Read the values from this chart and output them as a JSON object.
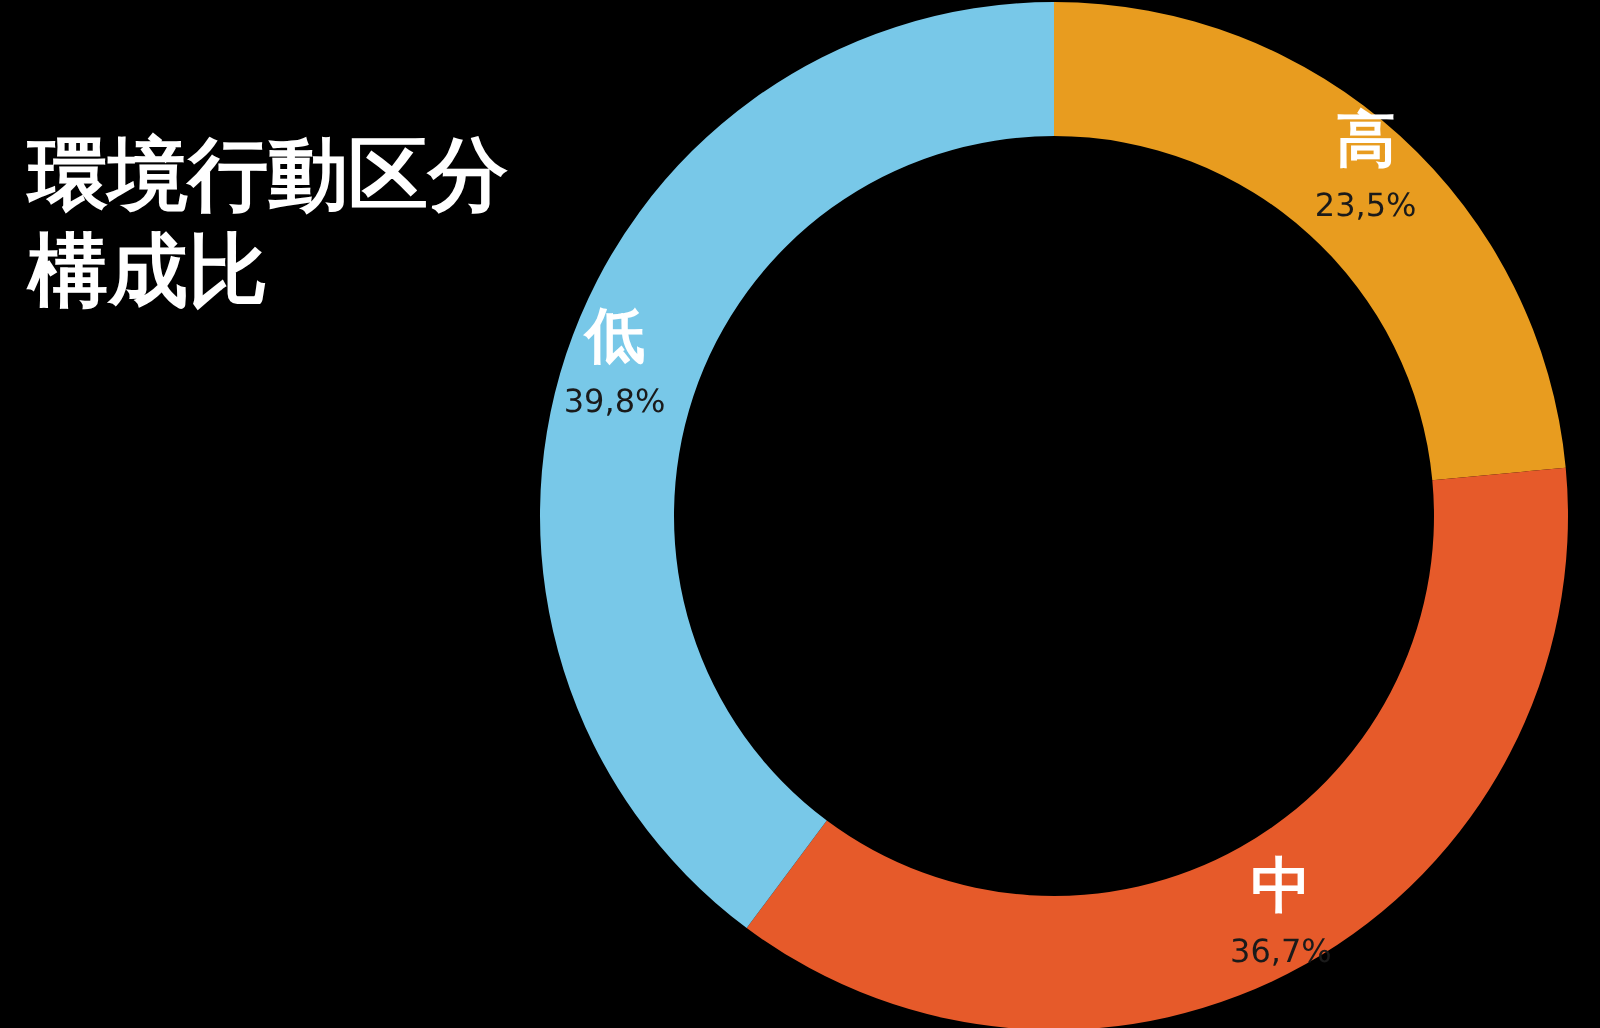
{
  "chart_data": {
    "type": "donut",
    "title": "環境行動区分構成比",
    "categories": [
      "高",
      "中",
      "低"
    ],
    "values": [
      23.5,
      36.7,
      39.8
    ],
    "colors": [
      "#e89c1f",
      "#e65a2a",
      "#78c8e8"
    ],
    "value_labels": [
      "23,5%",
      "36,7%",
      "39,8%"
    ]
  }
}
